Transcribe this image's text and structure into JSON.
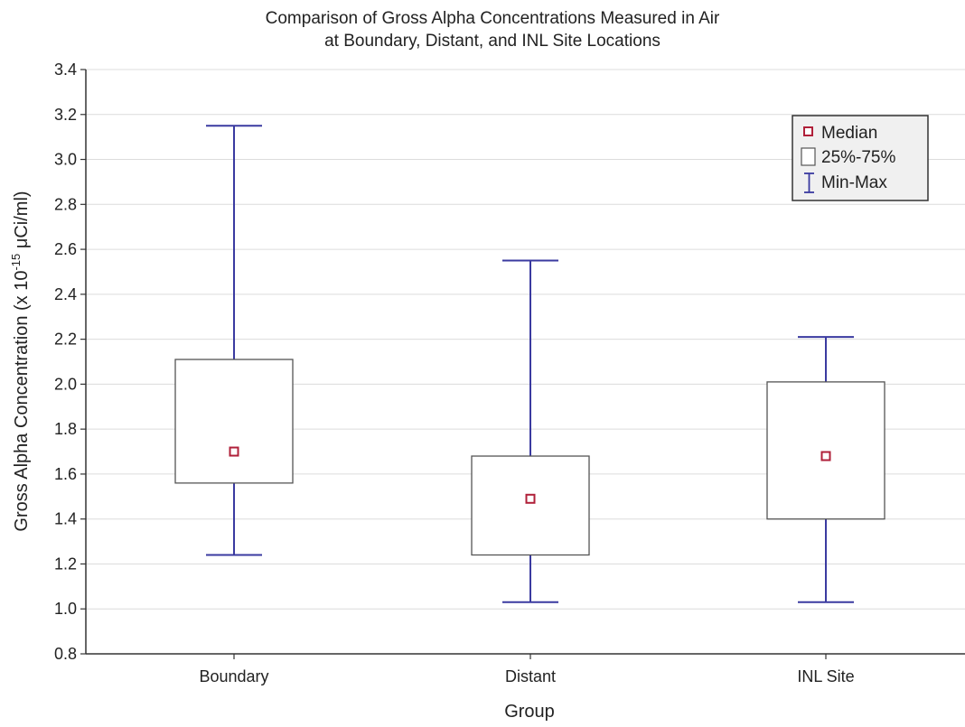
{
  "chart_data": {
    "type": "boxplot",
    "title_lines": [
      "Comparison of Gross Alpha Concentrations Measured in Air",
      "at Boundary, Distant, and INL Site Locations"
    ],
    "xlabel": "Group",
    "ylabel_prefix": "Gross Alpha Concentration (x 10",
    "ylabel_exponent": "-15",
    "ylabel_suffix": " μCi/ml)",
    "categories": [
      "Boundary",
      "Distant",
      "INL Site"
    ],
    "ylim": [
      0.8,
      3.4
    ],
    "yticks": [
      "0.8",
      "1.0",
      "1.2",
      "1.4",
      "1.6",
      "1.8",
      "2.0",
      "2.2",
      "2.4",
      "2.6",
      "2.8",
      "3.0",
      "3.2",
      "3.4"
    ],
    "grid": true,
    "legend_position": "top-right",
    "legend": [
      "Median",
      "25%-75%",
      "Min-Max"
    ],
    "series": [
      {
        "category": "Boundary",
        "min": 1.24,
        "q1": 1.56,
        "median": 1.7,
        "q3": 2.11,
        "max": 3.15
      },
      {
        "category": "Distant",
        "min": 1.03,
        "q1": 1.24,
        "median": 1.49,
        "q3": 1.68,
        "max": 2.55
      },
      {
        "category": "INL Site",
        "min": 1.03,
        "q1": 1.4,
        "median": 1.68,
        "q3": 2.01,
        "max": 2.21
      }
    ],
    "colors": {
      "whisker": "#3a3aa0",
      "box": "#555555",
      "median": "#b0203a",
      "grid": "#dcdcdc",
      "axis": "#333333"
    }
  }
}
